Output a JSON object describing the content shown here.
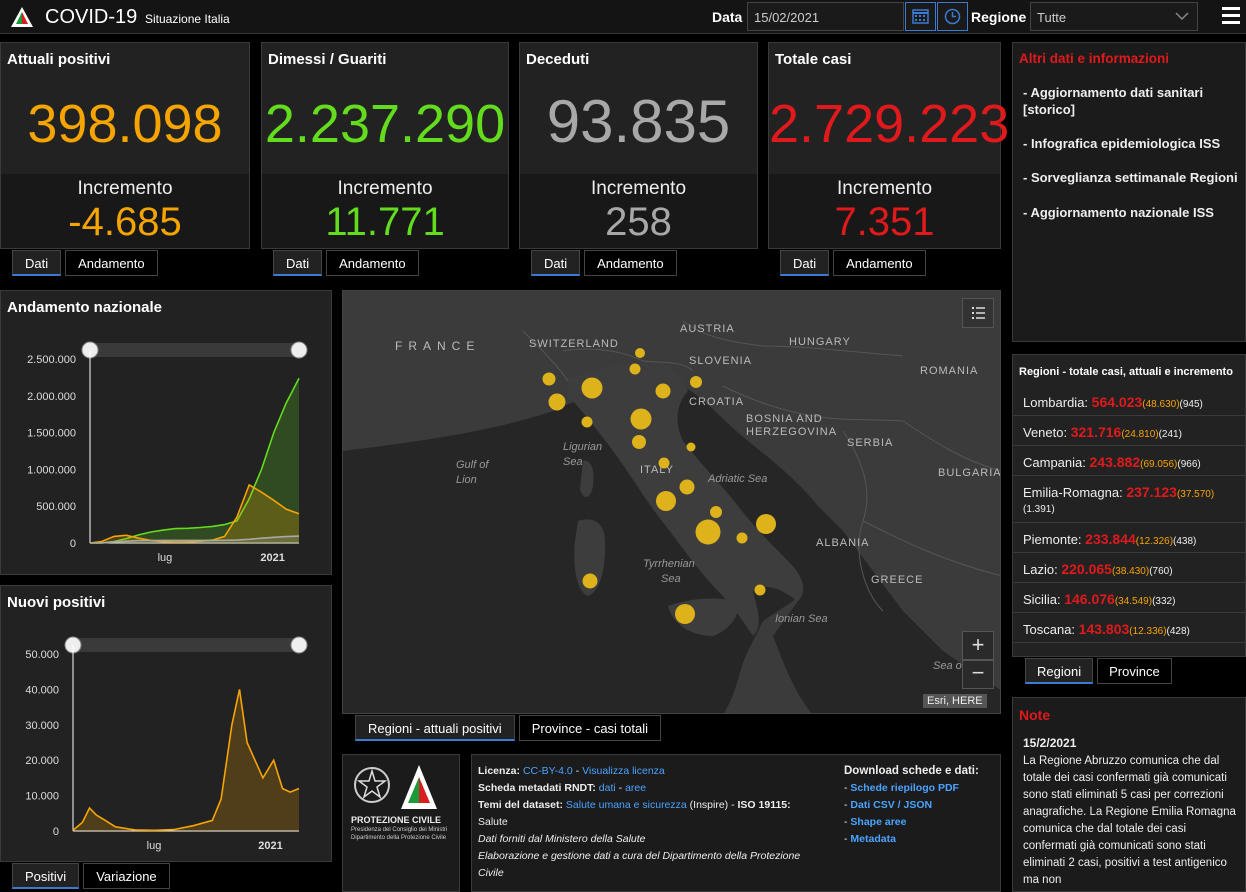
{
  "header": {
    "title": "COVID-19",
    "subtitle": "Situazione Italia",
    "date_label": "Data",
    "date_value": "15/02/2021",
    "region_label": "Regione",
    "region_value": "Tutte"
  },
  "cards": [
    {
      "title": "Attuali positivi",
      "value": "398.098",
      "inc_label": "Incremento",
      "inc_value": "-4.685",
      "color": "#f5a400"
    },
    {
      "title": "Dimessi / Guariti",
      "value": "2.237.290",
      "inc_label": "Incremento",
      "inc_value": "11.771",
      "color": "#64dc1e"
    },
    {
      "title": "Deceduti",
      "value": "93.835",
      "inc_label": "Incremento",
      "inc_value": "258",
      "color": "#a8a8a8"
    },
    {
      "title": "Totale casi",
      "value": "2.729.223",
      "inc_label": "Incremento",
      "inc_value": "7.351",
      "color": "#e0191c"
    }
  ],
  "card_tabs": {
    "dati": "Dati",
    "andamento": "Andamento"
  },
  "info": {
    "title": "Altri dati e informazioni",
    "items": [
      "- Aggiornamento dati sanitari [storico]",
      "- Infografica epidemiologica ISS",
      "- Sorveglianza settimanale Regioni",
      "- Aggiornamento nazionale ISS"
    ]
  },
  "regions": {
    "title": "Regioni - totale casi, attuali e incremento",
    "rows": [
      {
        "name": "Lombardia:",
        "total": "564.023",
        "current": "(48.630)",
        "inc": "(945)"
      },
      {
        "name": "Veneto:",
        "total": "321.716",
        "current": "(24.810)",
        "inc": "(241)"
      },
      {
        "name": "Campania:",
        "total": "243.882",
        "current": "(69.056)",
        "inc": "(966)"
      },
      {
        "name": "Emilia-Romagna:",
        "total": "237.123",
        "current": "(37.570)",
        "inc": "(1.391)"
      },
      {
        "name": "Piemonte:",
        "total": "233.844",
        "current": "(12.326)",
        "inc": "(438)"
      },
      {
        "name": "Lazio:",
        "total": "220.065",
        "current": "(38.430)",
        "inc": "(760)"
      },
      {
        "name": "Sicilia:",
        "total": "146.076",
        "current": "(34.549)",
        "inc": "(332)"
      },
      {
        "name": "Toscana:",
        "total": "143.803",
        "current": "(12.336)",
        "inc": "(428)"
      }
    ],
    "tabs": [
      "Regioni",
      "Province"
    ]
  },
  "map": {
    "countries": [
      "FRANCE",
      "SWITZERLAND",
      "AUSTRIA",
      "SLOVENIA",
      "HUNGARY",
      "ROMANIA",
      "CROATIA",
      "BOSNIA AND",
      "HERZEGOVINA",
      "SERBIA",
      "BULGARIA",
      "ITALY",
      "ALBANIA",
      "GREECE"
    ],
    "seas": [
      "Ligurian",
      "Sea",
      "Gulf of",
      "Lion",
      "Adriatic Sea",
      "Tyrrhenian",
      "Sea",
      "Ionian Sea",
      "Sea o"
    ],
    "attribution": "Esri, HERE",
    "tabs": [
      "Regioni - attuali positivi",
      "Province - casi totali"
    ]
  },
  "chart_nazionale": {
    "title": "Andamento nazionale",
    "chart_data": {
      "type": "area",
      "x": [
        "2020-02-24",
        "2020-03-15",
        "2020-04-05",
        "2020-04-26",
        "2020-05-17",
        "2020-06-07",
        "2020-06-28",
        "2020-07-19",
        "2020-08-09",
        "2020-08-30",
        "2020-09-20",
        "2020-10-11",
        "2020-11-01",
        "2020-11-22",
        "2020-12-13",
        "2021-01-03",
        "2021-01-24",
        "2021-02-15"
      ],
      "series": [
        {
          "name": "",
          "color": "#64dc1e",
          "values": [
            0,
            2000,
            20000,
            60000,
            110000,
            150000,
            175000,
            195000,
            200000,
            210000,
            225000,
            250000,
            300000,
            600000,
            1000000,
            1500000,
            1900000,
            2237290
          ]
        },
        {
          "name": "",
          "color": "#f5a400",
          "values": [
            200,
            20000,
            90000,
            105000,
            65000,
            35000,
            18000,
            13000,
            15000,
            25000,
            40000,
            90000,
            350000,
            790000,
            690000,
            580000,
            460000,
            398098
          ]
        },
        {
          "name": "",
          "color": "#a8a8a8",
          "values": [
            0,
            2000,
            15000,
            25000,
            32000,
            33500,
            34700,
            35000,
            35300,
            35500,
            35800,
            36500,
            39000,
            50000,
            65000,
            77000,
            87000,
            93835
          ]
        }
      ],
      "ylim": [
        0,
        2500000
      ],
      "yticks": [
        "2.500.000",
        "2.000.000",
        "1.500.000",
        "1.000.000",
        "500.000",
        "0"
      ],
      "xticks": [
        "lug",
        "2021"
      ]
    }
  },
  "chart_nuovi": {
    "title": "Nuovi positivi",
    "chart_data": {
      "type": "area",
      "x": [
        "2020-02-24",
        "2020-03-10",
        "2020-03-21",
        "2020-04-01",
        "2020-04-15",
        "2020-05-01",
        "2020-06-01",
        "2020-07-01",
        "2020-08-01",
        "2020-09-01",
        "2020-10-01",
        "2020-10-15",
        "2020-11-01",
        "2020-11-13",
        "2020-11-25",
        "2020-12-05",
        "2020-12-20",
        "2021-01-06",
        "2021-01-20",
        "2021-02-01",
        "2021-02-15"
      ],
      "series": [
        {
          "name": "",
          "color": "#f5a400",
          "values": [
            200,
            2500,
            6500,
            4500,
            3000,
            1200,
            300,
            200,
            400,
            1500,
            3000,
            9000,
            30000,
            40000,
            25000,
            21000,
            15000,
            20000,
            12000,
            11000,
            12000
          ]
        }
      ],
      "ylim": [
        0,
        50000
      ],
      "yticks": [
        "50.000",
        "40.000",
        "30.000",
        "20.000",
        "10.000",
        "0"
      ],
      "xticks": [
        "lug",
        "2021"
      ]
    },
    "tabs": [
      "Positivi",
      "Variazione"
    ]
  },
  "meta": {
    "logo_text": [
      "PROTEZIONE CIVILE",
      "Presidenza del Consiglio dei Ministri",
      "Dipartimento della Protezione Civile"
    ],
    "licenza_label": "Licenza:",
    "licenza_value": "CC-BY-4.0",
    "licenza_sep": " - ",
    "licenza_link": "Visualizza licenza",
    "scheda_label": "Scheda metadati RNDT:",
    "scheda_link1": "dati",
    "scheda_sep": " - ",
    "scheda_link2": "aree",
    "temi_label": "Temi del dataset:",
    "temi_link": "Salute umana e sicurezza",
    "temi_rest": " (Inspire) - ",
    "iso_label": "ISO 19115:",
    "iso_value": "Salute",
    "line_fonte": "Dati forniti dal Ministero della Salute",
    "line_elab": "Elaborazione e gestione dati a cura del Dipartimento della Protezione",
    "line_elab2": "Civile",
    "download_title": "Download schede e dati:",
    "downloads": [
      "Schede riepilogo PDF",
      "Dati CSV / JSON",
      "Shape aree",
      "Metadata"
    ]
  },
  "note": {
    "title": "Note",
    "date": "15/2/2021",
    "text": "La Regione Abruzzo comunica che dal totale dei casi confermati già comunicati sono stati eliminati 5 casi per correzioni anagrafiche. La Regione Emilia Romagna comunica che dal totale dei casi confermati già comunicati sono stati eliminati 2 casi, positivi a test antigenico ma non"
  }
}
